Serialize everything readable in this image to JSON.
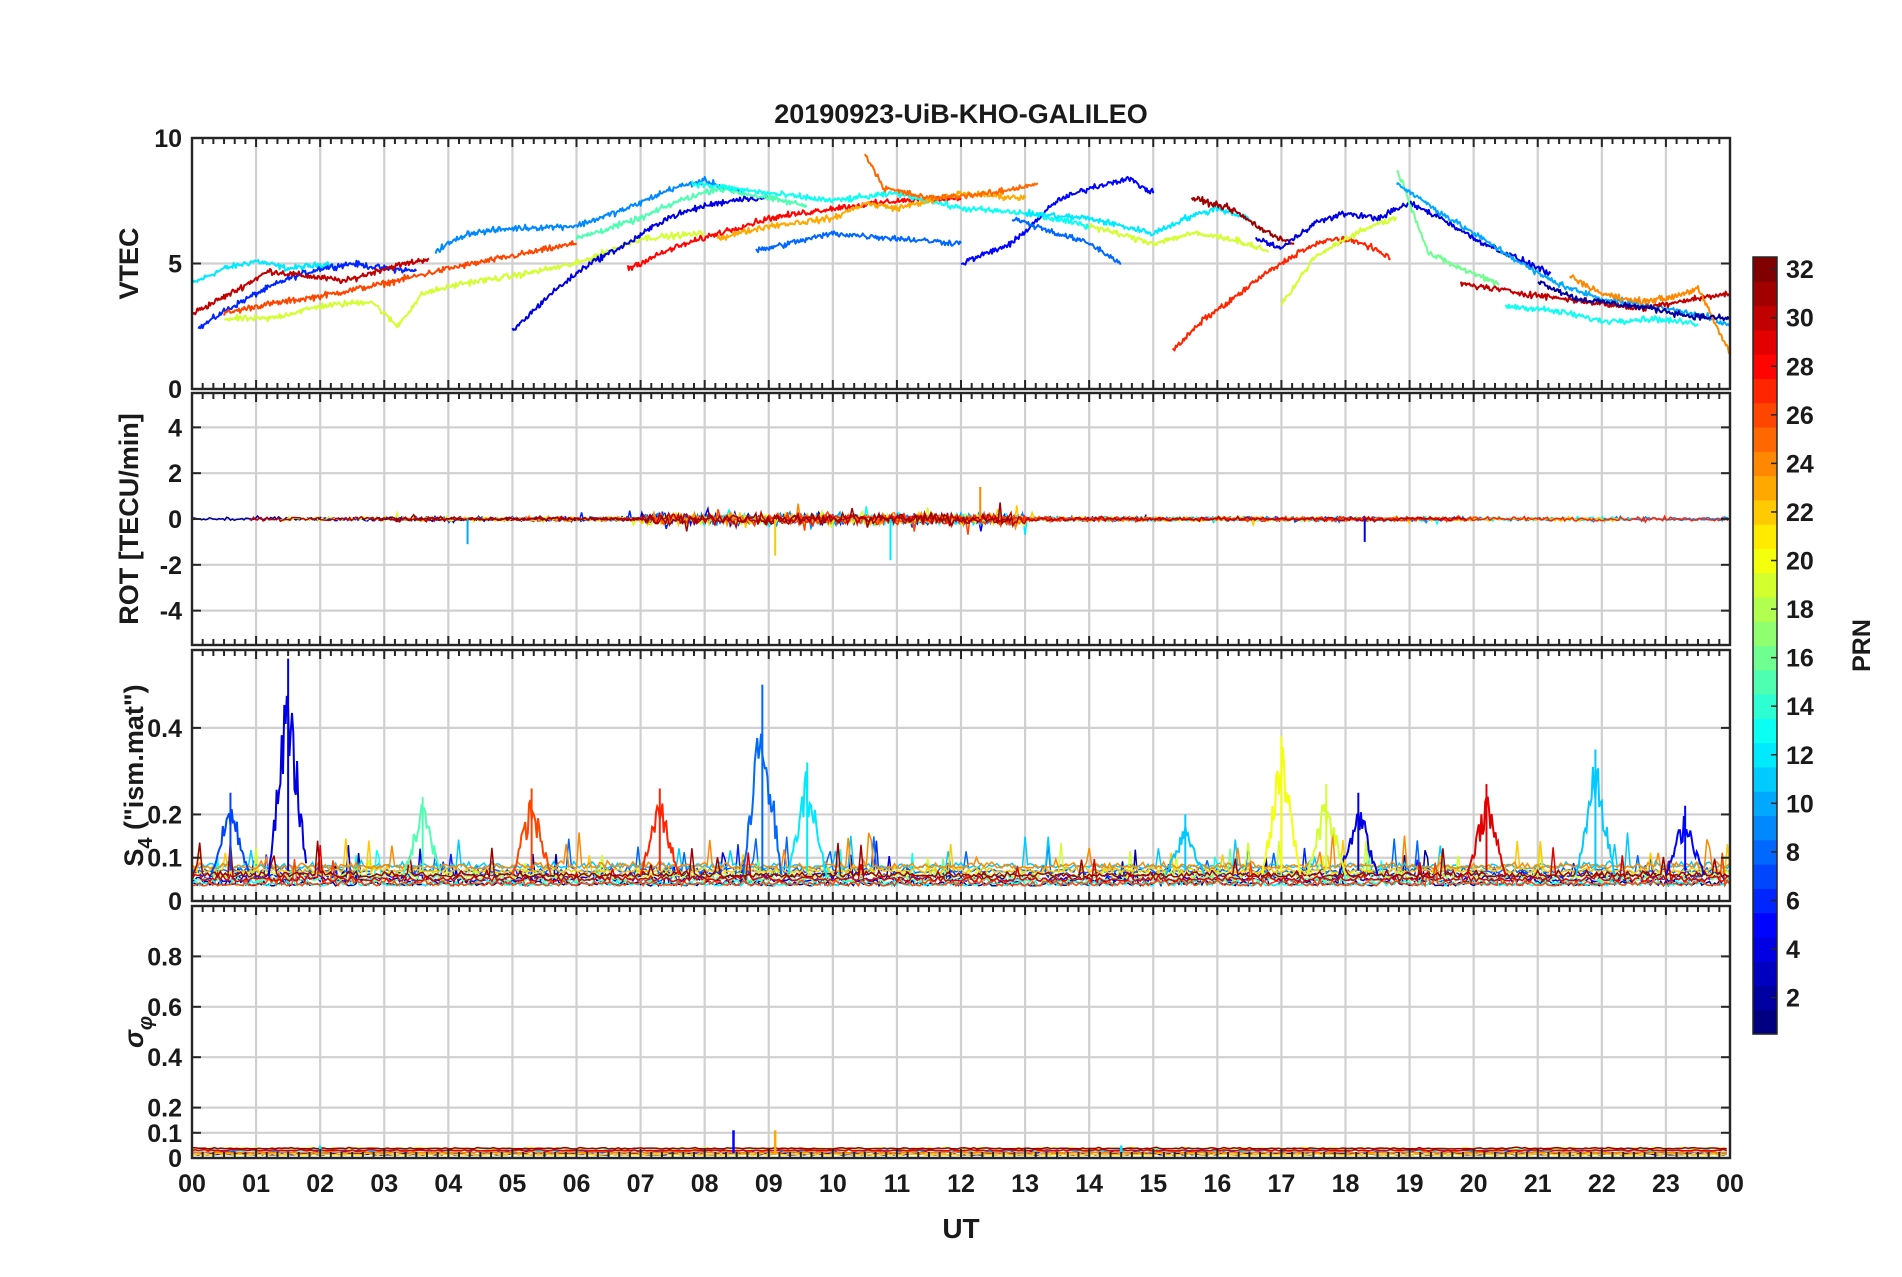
{
  "chart_data": {
    "type": "line",
    "title": "20190923-UiB-KHO-GALILEO",
    "xlabel": "UT",
    "x_ticks": [
      "00",
      "01",
      "02",
      "03",
      "04",
      "05",
      "06",
      "07",
      "08",
      "09",
      "10",
      "11",
      "12",
      "13",
      "14",
      "15",
      "16",
      "17",
      "18",
      "19",
      "20",
      "21",
      "22",
      "23",
      "00"
    ],
    "x_range": [
      0,
      24
    ],
    "colormap": "jet",
    "colorbar": {
      "label": "PRN",
      "range": [
        1,
        32
      ],
      "ticks": [
        2,
        4,
        6,
        8,
        10,
        12,
        14,
        16,
        18,
        20,
        22,
        24,
        26,
        28,
        30,
        32
      ]
    },
    "panels": [
      {
        "id": "vtec",
        "ylabel": "VTEC",
        "ylim": [
          0,
          10
        ],
        "yticks": [
          "0",
          "5",
          "10"
        ],
        "ytick_values": [
          0,
          5,
          10
        ],
        "traces": [
          {
            "prn": 12,
            "x": [
              0,
              0.5,
              1.0,
              1.5,
              2.2
            ],
            "y": [
              4.2,
              4.8,
              5.1,
              4.8,
              5.0
            ]
          },
          {
            "prn": 6,
            "x": [
              0.1,
              0.5,
              1.0,
              1.5,
              2.0,
              2.5,
              3.0,
              3.5
            ],
            "y": [
              2.4,
              3.1,
              3.8,
              4.4,
              4.8,
              5.0,
              4.8,
              4.7
            ]
          },
          {
            "prn": 30,
            "x": [
              0,
              0.6,
              1.2,
              1.8,
              2.4,
              3.0,
              3.7
            ],
            "y": [
              3.0,
              3.8,
              4.7,
              4.5,
              4.3,
              4.8,
              5.2
            ]
          },
          {
            "prn": 26,
            "x": [
              0.5,
              1.0,
              2.0,
              3.0,
              4.0,
              5.0,
              6.0
            ],
            "y": [
              3.0,
              3.3,
              3.7,
              4.2,
              4.8,
              5.3,
              5.8
            ]
          },
          {
            "prn": 19,
            "x": [
              0.5,
              1.2,
              2.0,
              2.8,
              3.2,
              3.6,
              4.2,
              5.0,
              6.0,
              7.0,
              8.0
            ],
            "y": [
              2.8,
              2.8,
              3.3,
              3.5,
              2.5,
              3.8,
              4.2,
              4.5,
              5.0,
              6.0,
              6.2
            ]
          },
          {
            "prn": 9,
            "x": [
              3.8,
              4.3,
              5.0,
              6.0,
              6.8,
              7.5,
              8.0,
              8.6
            ],
            "y": [
              5.5,
              6.2,
              6.4,
              6.5,
              7.2,
              8.0,
              8.3,
              7.8
            ]
          },
          {
            "prn": 4,
            "x": [
              5.0,
              5.6,
              6.2,
              6.8,
              7.4,
              8.0,
              8.6,
              9.0
            ],
            "y": [
              2.3,
              3.8,
              5.0,
              5.8,
              6.8,
              7.3,
              7.6,
              7.6
            ]
          },
          {
            "prn": 15,
            "x": [
              6.0,
              7.0,
              7.6,
              8.2,
              9.0,
              9.6
            ],
            "y": [
              6.0,
              6.8,
              7.5,
              8.0,
              7.6,
              7.3
            ]
          },
          {
            "prn": 28,
            "x": [
              6.8,
              7.5,
              8.2,
              9.0,
              10.0,
              11.0,
              12.0
            ],
            "y": [
              4.8,
              5.6,
              6.2,
              6.8,
              7.2,
              7.5,
              7.6
            ]
          },
          {
            "prn": 13,
            "x": [
              7.8,
              9.0,
              10.0,
              11.0,
              12.0,
              13.0,
              14.0
            ],
            "y": [
              8.2,
              7.8,
              7.5,
              7.8,
              7.2,
              7.0,
              6.5
            ]
          },
          {
            "prn": 23,
            "x": [
              8.2,
              9.0,
              10.0,
              10.5,
              11.0,
              12.0,
              13.0
            ],
            "y": [
              6.0,
              6.5,
              6.8,
              7.4,
              7.2,
              7.8,
              7.6
            ]
          },
          {
            "prn": 25,
            "x": [
              10.5,
              10.8,
              11.5,
              12.5,
              13.2
            ],
            "y": [
              9.4,
              8.0,
              7.6,
              7.8,
              8.2
            ]
          },
          {
            "prn": 8,
            "x": [
              8.8,
              10.0,
              11.0,
              12.0
            ],
            "y": [
              5.5,
              6.2,
              6.0,
              5.8
            ]
          },
          {
            "prn": 5,
            "x": [
              12.0,
              12.8,
              13.5,
              14.0,
              14.6,
              15.0
            ],
            "y": [
              5.0,
              5.8,
              7.5,
              8.0,
              8.4,
              7.8
            ]
          },
          {
            "prn": 12,
            "x": [
              13.0,
              14.0,
              15.0,
              15.5,
              16.0,
              16.5
            ],
            "y": [
              7.0,
              6.8,
              6.2,
              6.8,
              7.2,
              6.8
            ]
          },
          {
            "prn": 8,
            "x": [
              12.8,
              13.5,
              14.0,
              14.5
            ],
            "y": [
              6.8,
              6.2,
              5.8,
              5.0
            ]
          },
          {
            "prn": 19,
            "x": [
              14.0,
              15.0,
              15.6,
              16.2,
              16.8
            ],
            "y": [
              6.5,
              5.8,
              6.2,
              6.0,
              5.5
            ]
          },
          {
            "prn": 31,
            "x": [
              15.6,
              16.2,
              16.8,
              17.2
            ],
            "y": [
              7.6,
              7.2,
              6.2,
              5.8
            ]
          },
          {
            "prn": 27,
            "x": [
              15.3,
              15.8,
              16.2,
              16.7,
              17.3,
              17.8,
              18.3,
              18.7
            ],
            "y": [
              1.5,
              2.8,
              3.5,
              4.5,
              5.5,
              6.0,
              5.8,
              5.2
            ]
          },
          {
            "prn": 4,
            "x": [
              16.6,
              17.0,
              17.5,
              18.0,
              18.5,
              19.0,
              19.5,
              20.0,
              20.6,
              21.2
            ],
            "y": [
              6.0,
              5.6,
              6.6,
              7.0,
              6.8,
              7.4,
              6.8,
              6.0,
              5.3,
              4.6
            ]
          },
          {
            "prn": 19,
            "x": [
              17.0,
              17.5,
              18.0,
              18.5,
              18.8
            ],
            "y": [
              3.3,
              5.2,
              6.0,
              6.6,
              6.8
            ]
          },
          {
            "prn": 16,
            "x": [
              18.8,
              19.3,
              19.8,
              20.4
            ],
            "y": [
              8.8,
              5.4,
              4.8,
              4.2
            ]
          },
          {
            "prn": 10,
            "x": [
              18.8,
              19.5,
              20.0,
              20.5,
              21.0,
              21.5,
              22.0,
              22.5,
              23.0,
              23.5,
              24.0
            ],
            "y": [
              8.2,
              7.0,
              6.2,
              5.4,
              4.6,
              4.0,
              3.6,
              3.4,
              3.2,
              3.0,
              2.5
            ]
          },
          {
            "prn": 30,
            "x": [
              19.8,
              20.3,
              20.8,
              21.4,
              22.0,
              22.6,
              23.2,
              24.0
            ],
            "y": [
              4.2,
              4.0,
              3.8,
              3.6,
              3.4,
              3.2,
              3.5,
              3.8
            ]
          },
          {
            "prn": 24,
            "x": [
              21.5,
              22.0,
              22.5,
              23.0,
              23.5,
              24.0
            ],
            "y": [
              4.5,
              3.8,
              3.5,
              3.6,
              4.0,
              1.4
            ]
          },
          {
            "prn": 13,
            "x": [
              20.5,
              21.0,
              21.5,
              22.0,
              22.8,
              23.5
            ],
            "y": [
              3.3,
              3.2,
              3.0,
              2.7,
              2.8,
              2.6
            ]
          },
          {
            "prn": 2,
            "x": [
              21.0,
              21.6,
              22.2,
              22.8,
              23.4,
              24.0
            ],
            "y": [
              4.3,
              3.6,
              3.4,
              3.2,
              2.9,
              2.8
            ]
          }
        ]
      },
      {
        "id": "rot",
        "ylabel": "ROT [TECU/min]",
        "ylim": [
          -5.5,
          5.5
        ],
        "yticks": [
          "-4",
          "-2",
          "0",
          "2",
          "4"
        ],
        "ytick_values": [
          -4,
          -2,
          0,
          2,
          4
        ],
        "summary": "Noisy rate of TEC near zero for all PRNs; excursions up to about +1.4 near 12 UT and down to about -1.8 near 10.9 UT",
        "extremes": [
          {
            "prn": 24,
            "x": 12.3,
            "y": 1.4
          },
          {
            "prn": 12,
            "x": 10.9,
            "y": -1.8
          },
          {
            "prn": 22,
            "x": 9.1,
            "y": -1.6
          },
          {
            "prn": 10,
            "x": 4.3,
            "y": -1.1
          },
          {
            "prn": 4,
            "x": 18.3,
            "y": -1.0
          }
        ]
      },
      {
        "id": "s4",
        "ylabel": "S4 (\"ism.mat\")",
        "ylabel_main": "S",
        "ylabel_sub": "4",
        "ylabel_rest": " (\"ism.mat\")",
        "ylim": [
          0,
          0.58
        ],
        "yticks": [
          "0",
          "0.1",
          "0.2",
          "0.4"
        ],
        "ytick_values": [
          0,
          0.1,
          0.2,
          0.4
        ],
        "summary": "Background S4 of roughly 0.03-0.1 with sporadic spikes",
        "spikes": [
          {
            "prn": 4,
            "x": 1.5,
            "y": 0.56
          },
          {
            "prn": 8,
            "x": 8.9,
            "y": 0.5
          },
          {
            "prn": 20,
            "x": 17.0,
            "y": 0.38
          },
          {
            "prn": 11,
            "x": 21.9,
            "y": 0.35
          },
          {
            "prn": 12,
            "x": 9.6,
            "y": 0.32
          },
          {
            "prn": 29,
            "x": 20.2,
            "y": 0.27
          },
          {
            "prn": 26,
            "x": 5.3,
            "y": 0.26
          },
          {
            "prn": 27,
            "x": 7.3,
            "y": 0.26
          },
          {
            "prn": 7,
            "x": 0.6,
            "y": 0.25
          },
          {
            "prn": 15,
            "x": 3.6,
            "y": 0.24
          },
          {
            "prn": 4,
            "x": 18.2,
            "y": 0.25
          },
          {
            "prn": 19,
            "x": 17.7,
            "y": 0.27
          },
          {
            "prn": 11,
            "x": 15.5,
            "y": 0.2
          },
          {
            "prn": 5,
            "x": 23.3,
            "y": 0.22
          }
        ]
      },
      {
        "id": "sigma_phi",
        "ylabel": "σ φ",
        "ylabel_main": "σ",
        "ylabel_sub": "φ",
        "ylim": [
          0,
          1.0
        ],
        "yticks": [
          "0",
          "0.1",
          "0.2",
          "0.4",
          "0.6",
          "0.8"
        ],
        "ytick_values": [
          0,
          0.1,
          0.2,
          0.4,
          0.6,
          0.8
        ],
        "summary": "Phase scintillation index mostly below 0.05 for all satellites",
        "spikes": [
          {
            "prn": 5,
            "x": 8.45,
            "y": 0.11
          },
          {
            "prn": 23,
            "x": 9.1,
            "y": 0.11
          },
          {
            "prn": 12,
            "x": 2.0,
            "y": 0.05
          },
          {
            "prn": 12,
            "x": 14.5,
            "y": 0.05
          }
        ]
      }
    ]
  }
}
